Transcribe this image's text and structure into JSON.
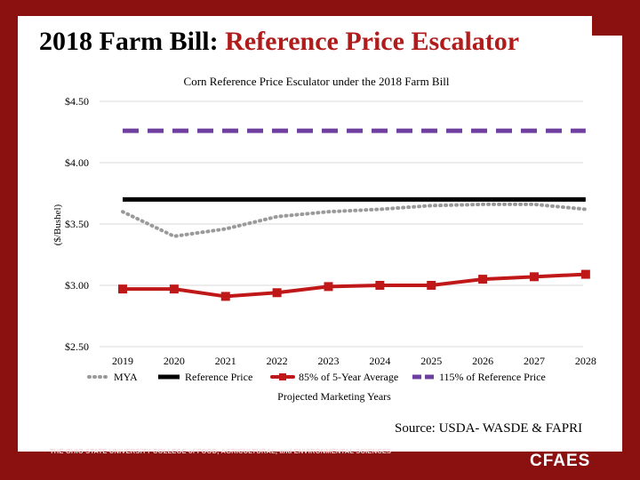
{
  "slide": {
    "title_prefix": "2018 Farm Bill: ",
    "title_accent": "Reference Price Escalator",
    "source": "Source: USDA- WASDE & FAPRI",
    "footer_text": "THE OHIO STATE UNIVERSITY COLLEGE of FOOD, AGRICULTURAL, and ENVIRONMENTAL SCIENCES",
    "brand": "CFAES"
  },
  "colors": {
    "frame": "#8b1010",
    "accent_red": "#b01b1b",
    "mya": "#9a9a9a",
    "reference": "#000000",
    "five_year": "#c01818",
    "pct115": "#6f3fa0"
  },
  "chart_data": {
    "type": "line",
    "title": "Corn Reference Price Esculator under the 2018 Farm Bill",
    "xlabel": "Projected Marketing Years",
    "ylabel": "($/Bushel)",
    "categories": [
      "2019",
      "2020",
      "2021",
      "2022",
      "2023",
      "2024",
      "2025",
      "2026",
      "2027",
      "2028"
    ],
    "ylim": [
      2.5,
      4.5
    ],
    "yticks": [
      2.5,
      3.0,
      3.5,
      4.0,
      4.5
    ],
    "ytick_labels": [
      "$2.50",
      "$3.00",
      "$3.50",
      "$4.00",
      "$4.50"
    ],
    "grid": true,
    "legend_position": "bottom",
    "series": [
      {
        "name": "MYA",
        "style": "dotted",
        "values": [
          3.6,
          3.4,
          3.46,
          3.56,
          3.6,
          3.62,
          3.65,
          3.66,
          3.66,
          3.62
        ]
      },
      {
        "name": "Reference Price",
        "style": "solid",
        "values": [
          3.7,
          3.7,
          3.7,
          3.7,
          3.7,
          3.7,
          3.7,
          3.7,
          3.7,
          3.7
        ]
      },
      {
        "name": "85% of 5-Year Average",
        "style": "solid-marker",
        "values": [
          2.97,
          2.97,
          2.91,
          2.94,
          2.99,
          3.0,
          3.0,
          3.05,
          3.07,
          3.09
        ]
      },
      {
        "name": "115% of Reference Price",
        "style": "dashed",
        "values": [
          4.26,
          4.26,
          4.26,
          4.26,
          4.26,
          4.26,
          4.26,
          4.26,
          4.26,
          4.26
        ]
      }
    ]
  }
}
